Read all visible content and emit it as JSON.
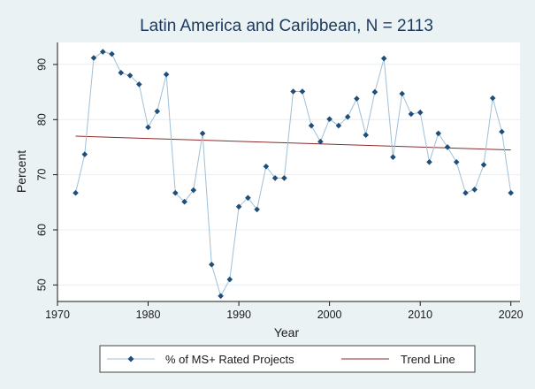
{
  "chart_data": {
    "type": "line",
    "title": "Latin America and Caribbean, N = 2113",
    "xlabel": "Year",
    "ylabel": "Percent",
    "xlim": [
      1970,
      2021
    ],
    "ylim": [
      47,
      94
    ],
    "xticks": [
      1970,
      1980,
      1990,
      2000,
      2010,
      2020
    ],
    "yticks": [
      50,
      60,
      70,
      80,
      90
    ],
    "grid": "horizontal",
    "legend_position": "bottom",
    "x": [
      1972,
      1973,
      1974,
      1975,
      1976,
      1977,
      1978,
      1979,
      1980,
      1981,
      1982,
      1983,
      1984,
      1985,
      1986,
      1987,
      1988,
      1989,
      1990,
      1991,
      1992,
      1993,
      1994,
      1995,
      1996,
      1997,
      1998,
      1999,
      2000,
      2001,
      2002,
      2003,
      2004,
      2005,
      2006,
      2007,
      2008,
      2009,
      2010,
      2011,
      2012,
      2013,
      2014,
      2015,
      2016,
      2017,
      2018,
      2019,
      2020
    ],
    "series": [
      {
        "name": "% of MS+ Rated Projects",
        "color": "#1f4e79",
        "line_color": "#9fc0d8",
        "marker": "diamond",
        "values": [
          66.7,
          73.7,
          91.2,
          92.3,
          91.9,
          88.5,
          88.0,
          86.4,
          78.6,
          81.5,
          88.2,
          66.7,
          65.1,
          67.2,
          77.5,
          53.7,
          48.0,
          51.0,
          64.2,
          65.8,
          63.7,
          71.5,
          69.4,
          69.4,
          85.1,
          85.1,
          78.9,
          76.0,
          80.1,
          78.9,
          80.5,
          83.8,
          77.2,
          85.0,
          91.1,
          73.2,
          84.7,
          81.0,
          81.3,
          72.3,
          77.5,
          75.0,
          72.3,
          66.7,
          67.3,
          71.8,
          83.9,
          77.8,
          66.7
        ]
      },
      {
        "name": "Trend Line",
        "color": "#8b2b2b",
        "type": "trend",
        "x": [
          1972,
          2020
        ],
        "values": [
          77.0,
          74.5
        ]
      }
    ]
  }
}
